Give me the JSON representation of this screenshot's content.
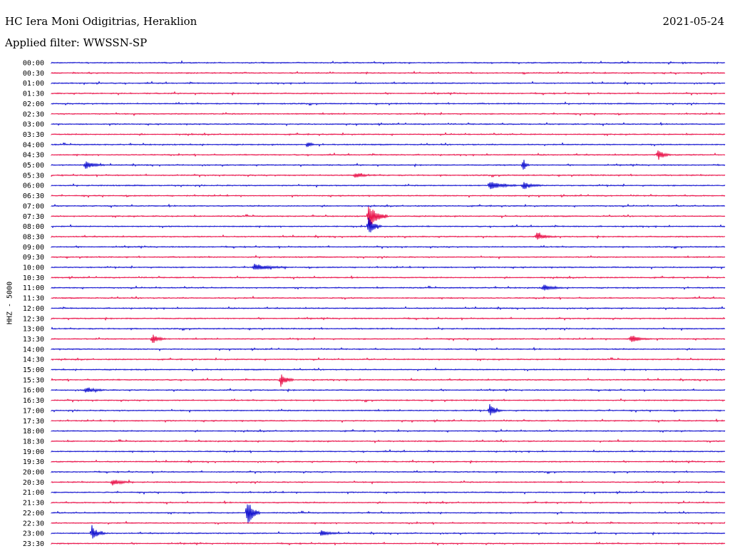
{
  "header": {
    "station": "HC Iera Moni Odigitrias, Heraklion",
    "date": "2021-05-24",
    "filter": "Applied filter: WWSSN-SP"
  },
  "chart_data": {
    "type": "seismogram helicorder",
    "title": "HC Iera Moni Odigitrias, Heraklion",
    "ylabel": "HHZ - 5000",
    "tick_labels": [
      "00:00",
      "00:30",
      "01:00",
      "01:30",
      "02:00",
      "02:30",
      "03:00",
      "03:30",
      "04:00",
      "04:30",
      "05:00",
      "05:30",
      "06:00",
      "06:30",
      "07:00",
      "07:30",
      "08:00",
      "08:30",
      "09:00",
      "09:30",
      "10:00",
      "10:30",
      "11:00",
      "11:30",
      "12:00",
      "12:30",
      "13:00",
      "13:30",
      "14:00",
      "14:30",
      "15:00",
      "15:30",
      "16:00",
      "16:30",
      "17:00",
      "17:30",
      "18:00",
      "18:30",
      "19:00",
      "19:30",
      "20:00",
      "20:30",
      "21:00",
      "21:30",
      "22:00",
      "22:30",
      "23:00",
      "23:30"
    ],
    "trace_colors": [
      "#0000cc",
      "#e8003c"
    ],
    "trace_span_minutes": 30,
    "series": [
      {
        "row": "04:00",
        "events": [
          {
            "t": 0.38,
            "amp": 8,
            "dur": 0.01
          }
        ]
      },
      {
        "row": "04:30",
        "events": [
          {
            "t": 0.9,
            "amp": 9,
            "dur": 0.02
          }
        ]
      },
      {
        "row": "05:00",
        "events": [
          {
            "t": 0.05,
            "amp": 6,
            "dur": 0.03
          },
          {
            "t": 0.7,
            "amp": 12,
            "dur": 0.01
          }
        ]
      },
      {
        "row": "05:30",
        "events": [
          {
            "t": 0.45,
            "amp": 4,
            "dur": 0.03
          }
        ]
      },
      {
        "row": "06:00",
        "events": [
          {
            "t": 0.65,
            "amp": 7,
            "dur": 0.04
          },
          {
            "t": 0.7,
            "amp": 6,
            "dur": 0.03
          }
        ]
      },
      {
        "row": "07:30",
        "events": [
          {
            "t": 0.47,
            "amp": 20,
            "dur": 0.03
          }
        ]
      },
      {
        "row": "08:00",
        "events": [
          {
            "t": 0.47,
            "amp": 15,
            "dur": 0.02
          }
        ]
      },
      {
        "row": "08:30",
        "events": [
          {
            "t": 0.72,
            "amp": 6,
            "dur": 0.03
          }
        ]
      },
      {
        "row": "10:00",
        "events": [
          {
            "t": 0.3,
            "amp": 5,
            "dur": 0.05
          }
        ]
      },
      {
        "row": "11:00",
        "events": [
          {
            "t": 0.73,
            "amp": 5,
            "dur": 0.03
          }
        ]
      },
      {
        "row": "13:30",
        "events": [
          {
            "t": 0.15,
            "amp": 8,
            "dur": 0.02
          },
          {
            "t": 0.86,
            "amp": 6,
            "dur": 0.03
          }
        ]
      },
      {
        "row": "15:30",
        "events": [
          {
            "t": 0.34,
            "amp": 12,
            "dur": 0.02
          }
        ]
      },
      {
        "row": "16:00",
        "events": [
          {
            "t": 0.05,
            "amp": 5,
            "dur": 0.03
          }
        ]
      },
      {
        "row": "17:00",
        "events": [
          {
            "t": 0.65,
            "amp": 10,
            "dur": 0.02
          }
        ]
      },
      {
        "row": "20:30",
        "events": [
          {
            "t": 0.09,
            "amp": 6,
            "dur": 0.03
          }
        ]
      },
      {
        "row": "22:00",
        "events": [
          {
            "t": 0.29,
            "amp": 25,
            "dur": 0.02
          }
        ]
      },
      {
        "row": "23:00",
        "events": [
          {
            "t": 0.06,
            "amp": 12,
            "dur": 0.02
          },
          {
            "t": 0.4,
            "amp": 4,
            "dur": 0.03
          }
        ]
      }
    ]
  }
}
